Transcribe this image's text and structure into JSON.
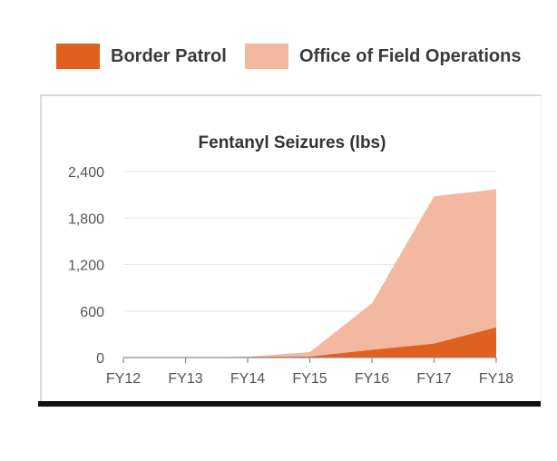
{
  "legend": {
    "items": [
      {
        "label": "Border Patrol",
        "color": "#e0601f"
      },
      {
        "label": "Office of Field Operations",
        "color": "#f2b9a0"
      }
    ]
  },
  "chart_data": {
    "type": "area",
    "stacked": true,
    "title": "Fentanyl Seizures (lbs)",
    "xlabel": "",
    "ylabel": "",
    "categories": [
      "FY12",
      "FY13",
      "FY14",
      "FY15",
      "FY16",
      "FY17",
      "FY18"
    ],
    "y_ticks": [
      "0",
      "600",
      "1,200",
      "1,800",
      "2,400"
    ],
    "ylim": [
      0,
      2400
    ],
    "grid": true,
    "legend_position": "top",
    "series": [
      {
        "name": "Border Patrol",
        "color": "#e0601f",
        "values": [
          0,
          1,
          7,
          13,
          100,
          180,
          390
        ]
      },
      {
        "name": "Office of Field Operations",
        "color": "#f2b9a0",
        "values": [
          0,
          1,
          3,
          57,
          600,
          1900,
          1780
        ]
      }
    ]
  }
}
